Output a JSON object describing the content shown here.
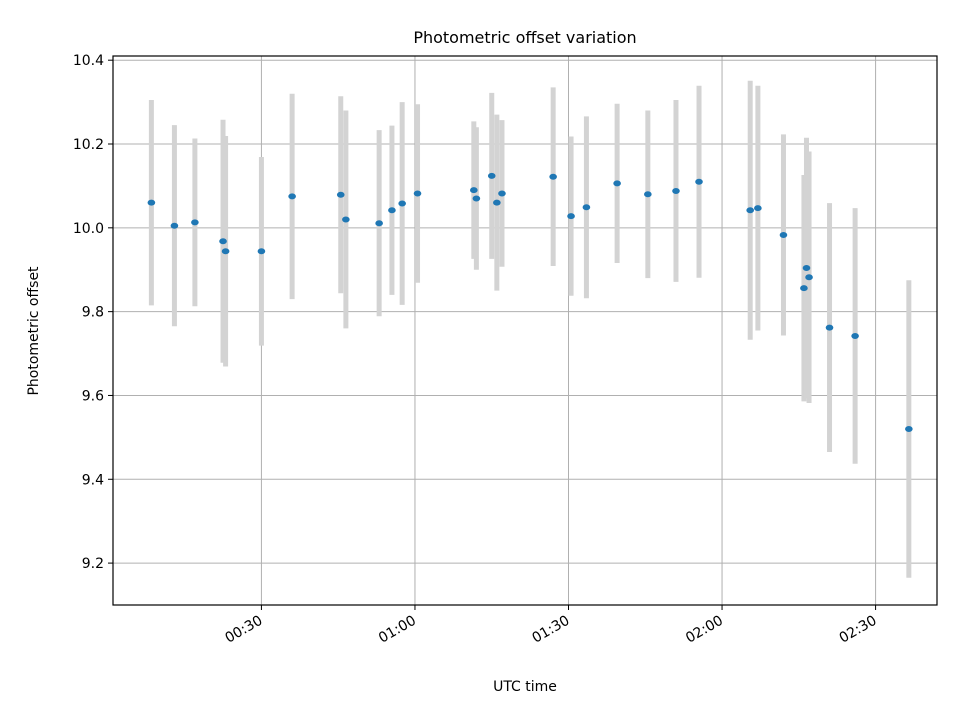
{
  "chart_data": {
    "type": "scatter",
    "title": "Photometric offset variation",
    "xlabel": "UTC time",
    "ylabel": "Photometric offset",
    "x_is_time": true,
    "xlim": [
      "00:01:00",
      "02:42:00"
    ],
    "ylim": [
      9.1,
      10.41
    ],
    "xticks": [
      "00:30",
      "01:00",
      "01:30",
      "02:00",
      "02:30"
    ],
    "yticks": [
      "9.2",
      "9.4",
      "9.6",
      "9.8",
      "10.0",
      "10.2",
      "10.4"
    ],
    "grid": true,
    "marker_color": "#1f77b4",
    "errorbar_color": "#d3d3d3",
    "points": [
      {
        "x": "00:08:30",
        "y": 10.06,
        "err": 0.245
      },
      {
        "x": "00:13:00",
        "y": 10.005,
        "err": 0.24
      },
      {
        "x": "00:17:00",
        "y": 10.013,
        "err": 0.2
      },
      {
        "x": "00:22:30",
        "y": 9.968,
        "err": 0.29
      },
      {
        "x": "00:23:00",
        "y": 9.944,
        "err": 0.275
      },
      {
        "x": "00:30:00",
        "y": 9.944,
        "err": 0.225
      },
      {
        "x": "00:36:00",
        "y": 10.075,
        "err": 0.245
      },
      {
        "x": "00:45:30",
        "y": 10.079,
        "err": 0.235
      },
      {
        "x": "00:46:30",
        "y": 10.02,
        "err": 0.26
      },
      {
        "x": "00:53:00",
        "y": 10.011,
        "err": 0.222
      },
      {
        "x": "00:55:30",
        "y": 10.042,
        "err": 0.202
      },
      {
        "x": "00:57:30",
        "y": 10.058,
        "err": 0.242
      },
      {
        "x": "01:00:30",
        "y": 10.082,
        "err": 0.213
      },
      {
        "x": "01:11:30",
        "y": 10.09,
        "err": 0.164
      },
      {
        "x": "01:12:00",
        "y": 10.07,
        "err": 0.17
      },
      {
        "x": "01:15:00",
        "y": 10.124,
        "err": 0.198
      },
      {
        "x": "01:16:00",
        "y": 10.06,
        "err": 0.21
      },
      {
        "x": "01:17:00",
        "y": 10.082,
        "err": 0.175
      },
      {
        "x": "01:27:00",
        "y": 10.122,
        "err": 0.213
      },
      {
        "x": "01:30:30",
        "y": 10.028,
        "err": 0.19
      },
      {
        "x": "01:33:30",
        "y": 10.049,
        "err": 0.217
      },
      {
        "x": "01:39:30",
        "y": 10.106,
        "err": 0.19
      },
      {
        "x": "01:45:30",
        "y": 10.08,
        "err": 0.2
      },
      {
        "x": "01:51:00",
        "y": 10.088,
        "err": 0.217
      },
      {
        "x": "01:55:30",
        "y": 10.11,
        "err": 0.229
      },
      {
        "x": "02:05:30",
        "y": 10.042,
        "err": 0.309
      },
      {
        "x": "02:07:00",
        "y": 10.047,
        "err": 0.292
      },
      {
        "x": "02:12:00",
        "y": 9.983,
        "err": 0.24
      },
      {
        "x": "02:16:00",
        "y": 9.856,
        "err": 0.27
      },
      {
        "x": "02:16:30",
        "y": 9.904,
        "err": 0.311
      },
      {
        "x": "02:17:00",
        "y": 9.882,
        "err": 0.3
      },
      {
        "x": "02:21:00",
        "y": 9.762,
        "err": 0.297
      },
      {
        "x": "02:26:00",
        "y": 9.742,
        "err": 0.305
      },
      {
        "x": "02:36:30",
        "y": 9.52,
        "err": 0.355
      }
    ]
  }
}
